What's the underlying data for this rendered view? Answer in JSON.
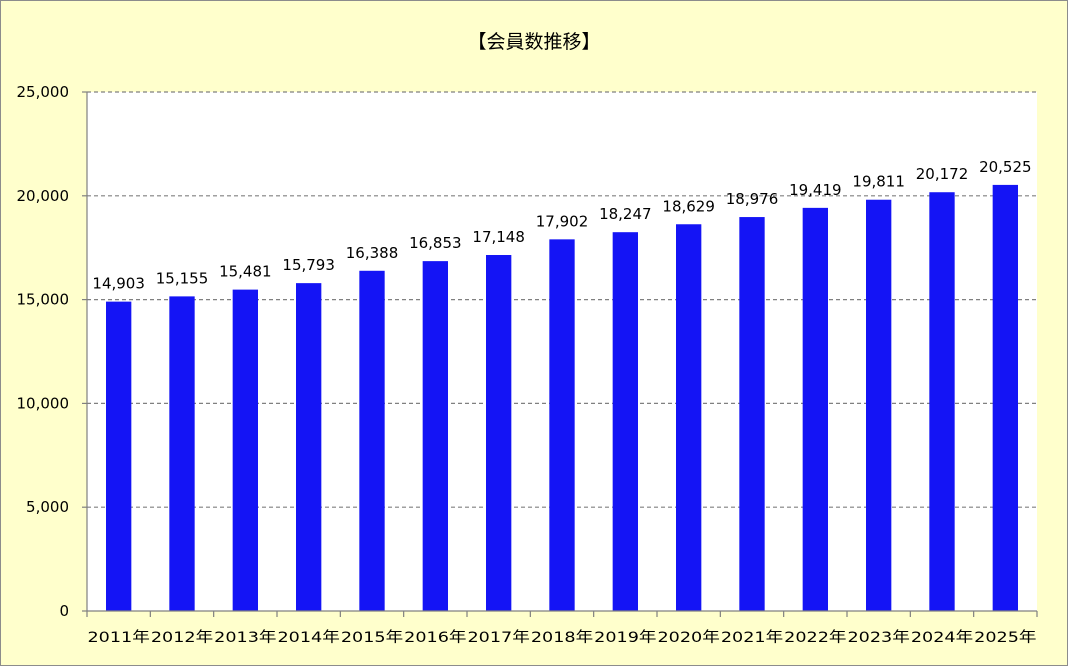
{
  "colors": {
    "background": "#FFFFCC",
    "plot_area": "#FFFFFF",
    "bar": "#1414F5",
    "gridline": "#808080",
    "axis": "#808080"
  },
  "chart_data": {
    "type": "bar",
    "title": "【会員数推移】",
    "xlabel": "",
    "ylabel": "",
    "categories": [
      "2011年",
      "2012年",
      "2013年",
      "2014年",
      "2015年",
      "2016年",
      "2017年",
      "2018年",
      "2019年",
      "2020年",
      "2021年",
      "2022年",
      "2023年",
      "2024年",
      "2025年"
    ],
    "values": [
      14903,
      15155,
      15481,
      15793,
      16388,
      16853,
      17148,
      17902,
      18247,
      18629,
      18976,
      19419,
      19811,
      20172,
      20525
    ],
    "data_labels": [
      "14,903",
      "15,155",
      "15,481",
      "15,793",
      "16,388",
      "16,853",
      "17,148",
      "17,902",
      "18,247",
      "18,629",
      "18,976",
      "19,419",
      "19,811",
      "20,172",
      "20,525"
    ],
    "ylim": [
      0,
      25000
    ],
    "yticks": [
      0,
      5000,
      10000,
      15000,
      20000,
      25000
    ],
    "ytick_labels": [
      "0",
      "5,000",
      "10,000",
      "15,000",
      "20,000",
      "25,000"
    ],
    "grid": true,
    "grid_style": "dashed",
    "legend": "none"
  }
}
